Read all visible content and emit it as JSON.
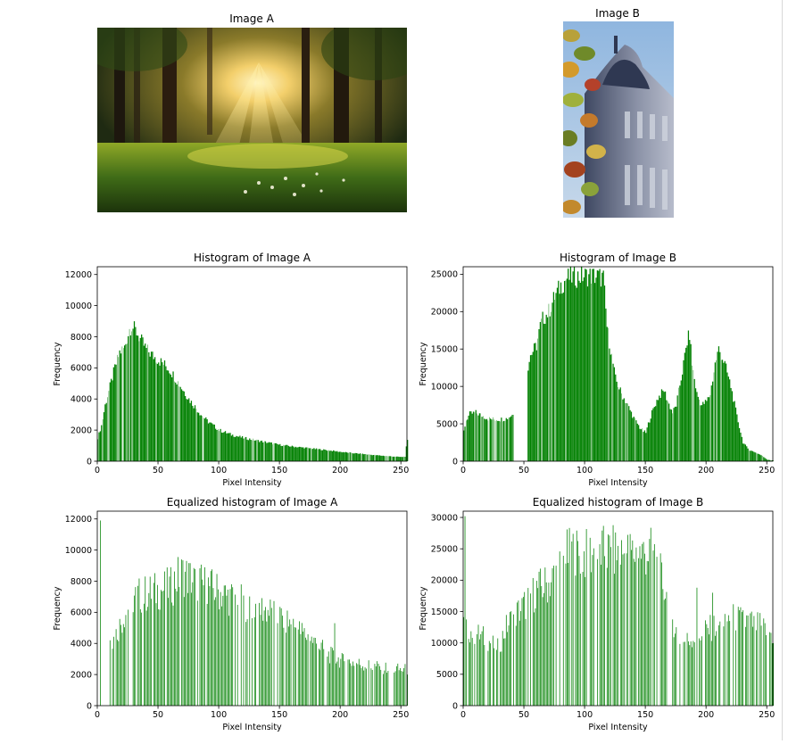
{
  "titles": {
    "image_a": "Image A",
    "image_b": "Image B"
  },
  "colors": {
    "bar": "#008000",
    "axes": "#000000",
    "background": "#ffffff"
  },
  "chart_data": [
    {
      "type": "bar",
      "title": "Histogram of Image A",
      "xlabel": "Pixel Intensity",
      "ylabel": "Frequency",
      "xlim": [
        0,
        255
      ],
      "ylim": [
        0,
        12500
      ],
      "xticks": [
        0,
        50,
        100,
        150,
        200,
        250
      ],
      "yticks": [
        0,
        2000,
        4000,
        6000,
        8000,
        10000,
        12000
      ],
      "profile": [
        [
          0,
          1500
        ],
        [
          3,
          2300
        ],
        [
          6,
          3600
        ],
        [
          10,
          4800
        ],
        [
          14,
          6000
        ],
        [
          18,
          7000
        ],
        [
          22,
          7300
        ],
        [
          26,
          8500
        ],
        [
          28,
          8700
        ],
        [
          32,
          8300
        ],
        [
          36,
          7700
        ],
        [
          40,
          7200
        ],
        [
          45,
          6800
        ],
        [
          50,
          6500
        ],
        [
          55,
          6200
        ],
        [
          60,
          5800
        ],
        [
          65,
          5200
        ],
        [
          70,
          4600
        ],
        [
          75,
          4000
        ],
        [
          80,
          3500
        ],
        [
          85,
          3000
        ],
        [
          90,
          2600
        ],
        [
          95,
          2300
        ],
        [
          100,
          2000
        ],
        [
          110,
          1700
        ],
        [
          120,
          1500
        ],
        [
          130,
          1350
        ],
        [
          140,
          1200
        ],
        [
          150,
          1050
        ],
        [
          160,
          950
        ],
        [
          170,
          870
        ],
        [
          180,
          780
        ],
        [
          190,
          700
        ],
        [
          200,
          600
        ],
        [
          210,
          520
        ],
        [
          220,
          450
        ],
        [
          230,
          380
        ],
        [
          240,
          320
        ],
        [
          250,
          270
        ],
        [
          253,
          300
        ],
        [
          254,
          900
        ],
        [
          255,
          1300
        ]
      ],
      "gaps": []
    },
    {
      "type": "bar",
      "title": "Histogram of Image B",
      "xlabel": "Pixel Intensity",
      "ylabel": "Frequency",
      "xlim": [
        0,
        255
      ],
      "ylim": [
        0,
        26000
      ],
      "xticks": [
        0,
        50,
        100,
        150,
        200,
        250
      ],
      "yticks": [
        0,
        5000,
        10000,
        15000,
        20000,
        25000
      ],
      "profile": [
        [
          0,
          4000
        ],
        [
          2,
          5500
        ],
        [
          5,
          6300
        ],
        [
          10,
          6500
        ],
        [
          15,
          6100
        ],
        [
          20,
          5700
        ],
        [
          25,
          5600
        ],
        [
          30,
          5600
        ],
        [
          35,
          5700
        ],
        [
          40,
          6200
        ],
        [
          45,
          7500
        ],
        [
          48,
          9500
        ],
        [
          52,
          12000
        ],
        [
          55,
          14200
        ],
        [
          60,
          15500
        ],
        [
          63,
          18000
        ],
        [
          65,
          19000
        ],
        [
          70,
          20000
        ],
        [
          75,
          22000
        ],
        [
          80,
          23500
        ],
        [
          85,
          24500
        ],
        [
          90,
          24600
        ],
        [
          95,
          24700
        ],
        [
          100,
          24800
        ],
        [
          105,
          24800
        ],
        [
          110,
          24700
        ],
        [
          115,
          24500
        ],
        [
          118,
          18000
        ],
        [
          122,
          14000
        ],
        [
          125,
          11000
        ],
        [
          130,
          9000
        ],
        [
          135,
          7500
        ],
        [
          140,
          5800
        ],
        [
          145,
          4500
        ],
        [
          148,
          4000
        ],
        [
          150,
          3800
        ],
        [
          152,
          5000
        ],
        [
          155,
          6500
        ],
        [
          160,
          8500
        ],
        [
          165,
          9500
        ],
        [
          168,
          8000
        ],
        [
          172,
          6500
        ],
        [
          175,
          7500
        ],
        [
          180,
          12000
        ],
        [
          184,
          16000
        ],
        [
          186,
          17000
        ],
        [
          188,
          13000
        ],
        [
          192,
          9000
        ],
        [
          196,
          7500
        ],
        [
          200,
          8000
        ],
        [
          203,
          9000
        ],
        [
          207,
          13000
        ],
        [
          210,
          15000
        ],
        [
          215,
          13000
        ],
        [
          220,
          10000
        ],
        [
          225,
          6000
        ],
        [
          230,
          2500
        ],
        [
          235,
          1500
        ],
        [
          240,
          1200
        ],
        [
          245,
          800
        ],
        [
          250,
          200
        ],
        [
          255,
          100
        ]
      ],
      "gaps": [
        [
          42,
          52
        ]
      ]
    },
    {
      "type": "bar",
      "title": "Equalized histogram of Image A",
      "xlabel": "Pixel Intensity",
      "ylabel": "Frequency",
      "xlim": [
        0,
        255
      ],
      "ylim": [
        0,
        12500
      ],
      "xticks": [
        0,
        50,
        100,
        150,
        200,
        250
      ],
      "yticks": [
        0,
        2000,
        4000,
        6000,
        8000,
        10000,
        12000
      ],
      "profile": [
        [
          0,
          2000
        ],
        [
          3,
          2500
        ],
        [
          5,
          3000
        ],
        [
          10,
          3800
        ],
        [
          15,
          4600
        ],
        [
          20,
          5500
        ],
        [
          25,
          6500
        ],
        [
          30,
          7000
        ],
        [
          40,
          7200
        ],
        [
          50,
          7400
        ],
        [
          60,
          7600
        ],
        [
          65,
          8200
        ],
        [
          70,
          8500
        ],
        [
          80,
          8000
        ],
        [
          90,
          7700
        ],
        [
          100,
          7300
        ],
        [
          110,
          6900
        ],
        [
          120,
          6600
        ],
        [
          130,
          6400
        ],
        [
          140,
          6100
        ],
        [
          150,
          5700
        ],
        [
          160,
          5200
        ],
        [
          170,
          4600
        ],
        [
          180,
          4000
        ],
        [
          190,
          3300
        ],
        [
          200,
          2900
        ],
        [
          210,
          2800
        ],
        [
          220,
          2600
        ],
        [
          230,
          2500
        ],
        [
          240,
          2400
        ],
        [
          250,
          2300
        ],
        [
          255,
          2300
        ]
      ],
      "spikes": [
        [
          2,
          11900
        ],
        [
          10,
          4200
        ],
        [
          195,
          5300
        ]
      ],
      "gaps": [
        [
          0,
          1
        ],
        [
          3,
          8
        ]
      ],
      "sparse": true
    },
    {
      "type": "bar",
      "title": "Equalized histogram of Image B",
      "xlabel": "Pixel Intensity",
      "ylabel": "Frequency",
      "xlim": [
        0,
        255
      ],
      "ylim": [
        0,
        31000
      ],
      "xticks": [
        0,
        50,
        100,
        150,
        200,
        250
      ],
      "yticks": [
        0,
        5000,
        10000,
        15000,
        20000,
        25000,
        30000
      ],
      "profile": [
        [
          0,
          13000
        ],
        [
          5,
          12000
        ],
        [
          10,
          11500
        ],
        [
          15,
          11000
        ],
        [
          20,
          10500
        ],
        [
          25,
          9500
        ],
        [
          30,
          10000
        ],
        [
          35,
          12500
        ],
        [
          40,
          14000
        ],
        [
          45,
          15000
        ],
        [
          50,
          16000
        ],
        [
          60,
          18500
        ],
        [
          70,
          19500
        ],
        [
          80,
          22000
        ],
        [
          85,
          24000
        ],
        [
          90,
          24500
        ],
        [
          100,
          24000
        ],
        [
          110,
          24500
        ],
        [
          120,
          24500
        ],
        [
          130,
          24300
        ],
        [
          140,
          24300
        ],
        [
          150,
          24300
        ],
        [
          155,
          24500
        ],
        [
          160,
          22000
        ],
        [
          165,
          19000
        ],
        [
          170,
          15000
        ],
        [
          175,
          12000
        ],
        [
          180,
          10000
        ],
        [
          190,
          11000
        ],
        [
          200,
          12000
        ],
        [
          210,
          13000
        ],
        [
          220,
          14000
        ],
        [
          230,
          13500
        ],
        [
          240,
          13000
        ],
        [
          250,
          12000
        ],
        [
          255,
          11000
        ]
      ],
      "spikes": [
        [
          1,
          30200
        ],
        [
          192,
          18800
        ],
        [
          205,
          18000
        ],
        [
          230,
          15200
        ]
      ],
      "gaps": [],
      "sparse": true
    }
  ]
}
